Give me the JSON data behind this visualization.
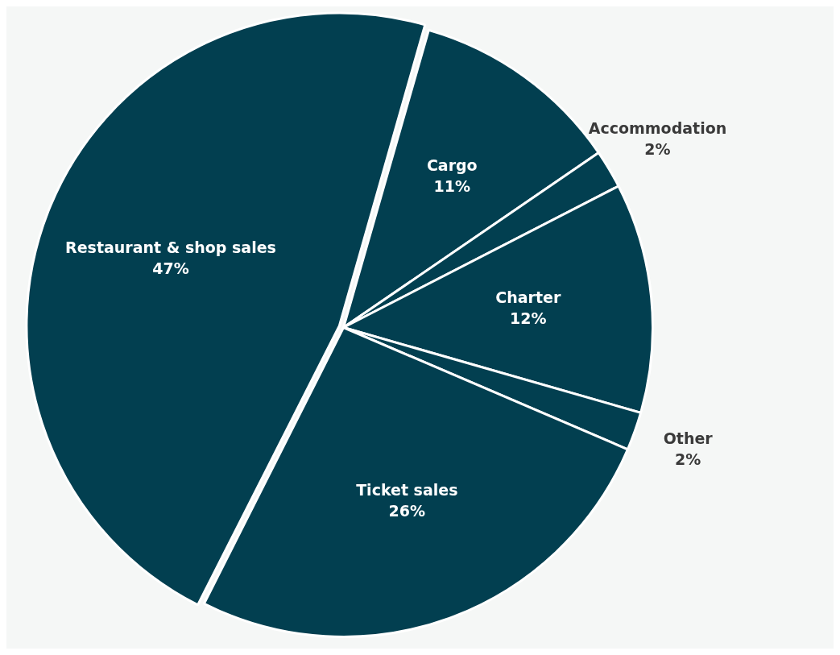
{
  "chart_data": {
    "type": "pie",
    "categories": [
      "Cargo",
      "Accommodation",
      "Charter",
      "Other",
      "Ticket sales",
      "Restaurant & shop sales"
    ],
    "values": [
      11,
      2,
      12,
      2,
      26,
      47
    ],
    "value_labels": [
      "11%",
      "2%",
      "12%",
      "2%",
      "26%",
      "47%"
    ],
    "colors": [
      "#023f50",
      "#023f50",
      "#023f50",
      "#023f50",
      "#023f50",
      "#023f50"
    ]
  }
}
